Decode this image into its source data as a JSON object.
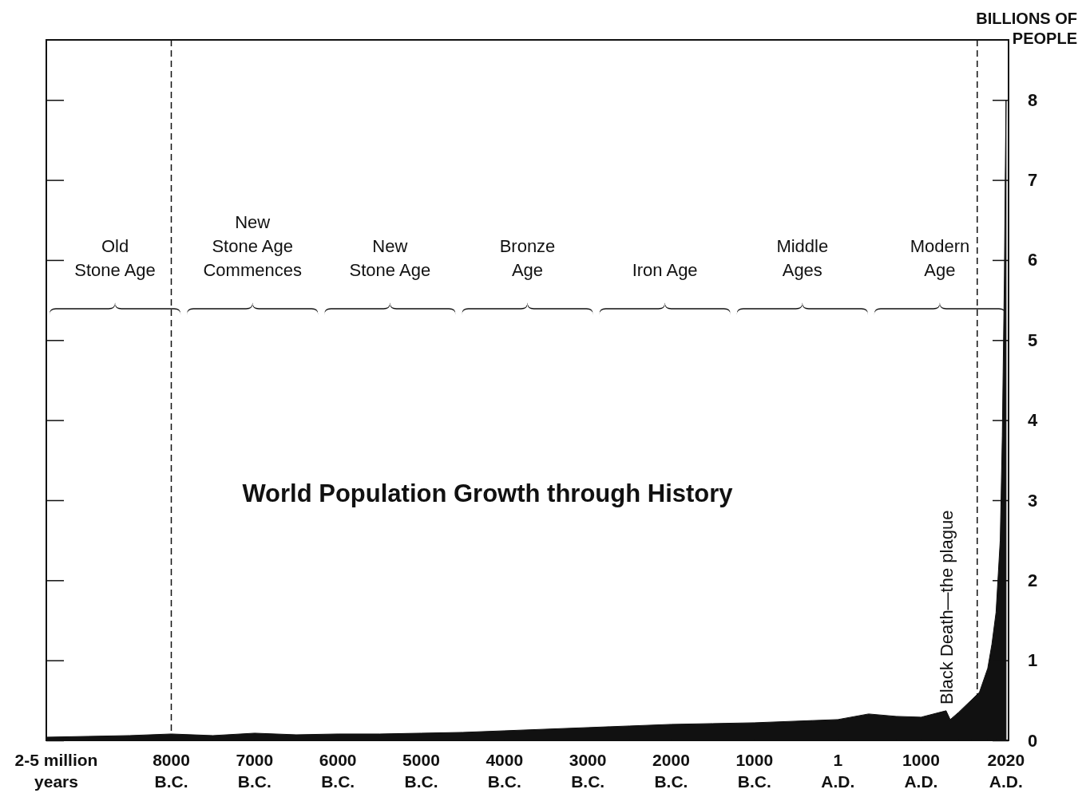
{
  "chart_data": {
    "type": "area",
    "title": "World Population Growth through History",
    "ylabel": "BILLIONS OF\nPEOPLE",
    "color": "#111111",
    "x": [
      -9500,
      -9000,
      -8500,
      -8000,
      -7500,
      -7000,
      -6500,
      -6000,
      -5500,
      -5000,
      -4500,
      -4000,
      -3500,
      -3000,
      -2500,
      -2000,
      -1500,
      -1000,
      -500,
      1,
      370,
      700,
      1000,
      1300,
      1350,
      1450,
      1600,
      1700,
      1800,
      1850,
      1900,
      1950,
      1975,
      2000,
      2010,
      2020
    ],
    "values": [
      0.04,
      0.05,
      0.06,
      0.08,
      0.06,
      0.09,
      0.07,
      0.08,
      0.08,
      0.09,
      0.1,
      0.12,
      0.14,
      0.16,
      0.18,
      0.2,
      0.21,
      0.22,
      0.24,
      0.26,
      0.33,
      0.3,
      0.29,
      0.37,
      0.26,
      0.35,
      0.5,
      0.6,
      0.9,
      1.2,
      1.6,
      2.5,
      3.8,
      5.8,
      7,
      8
    ],
    "xlim": [
      -9500,
      2050
    ],
    "ylim": [
      0,
      8.75
    ],
    "xticks": [
      {
        "value": -9380,
        "label": "2-5 million\nyears"
      },
      {
        "value": -8000,
        "label": "8000\nB.C."
      },
      {
        "value": -7000,
        "label": "7000\nB.C."
      },
      {
        "value": -6000,
        "label": "6000\nB.C."
      },
      {
        "value": -5000,
        "label": "5000\nB.C."
      },
      {
        "value": -4000,
        "label": "4000\nB.C."
      },
      {
        "value": -3000,
        "label": "3000\nB.C."
      },
      {
        "value": -2000,
        "label": "2000\nB.C."
      },
      {
        "value": -1000,
        "label": "1000\nB.C."
      },
      {
        "value": 1,
        "label": "1\nA.D."
      },
      {
        "value": 1000,
        "label": "1000\nA.D."
      },
      {
        "value": 2020,
        "label": "2020\nA.D."
      }
    ],
    "yticks": [
      0,
      1,
      2,
      3,
      4,
      5,
      6,
      7,
      8
    ],
    "ref_lines": [
      {
        "axis": "x",
        "value": -8000,
        "label": null,
        "line_style": "dashed"
      },
      {
        "axis": "x",
        "value": 1674,
        "label": null,
        "line_style": "dashed"
      }
    ],
    "annotations": [
      "Old\nStone Age",
      "New\nStone Age\nCommences",
      "New\nStone Age",
      "Bronze\nAge",
      "Iron Age",
      "Middle\nAges",
      "Modern\nAge",
      "Black Death—the plague"
    ]
  }
}
